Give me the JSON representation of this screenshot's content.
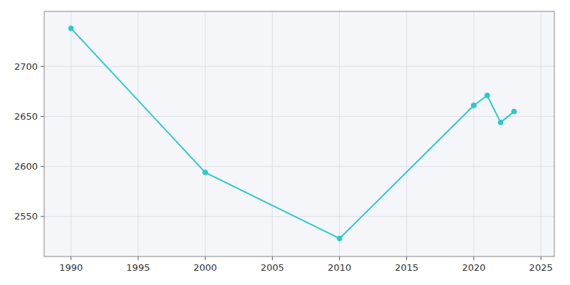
{
  "chart_data": {
    "type": "line",
    "x": [
      1990,
      2000,
      2010,
      2020,
      2021,
      2022,
      2023
    ],
    "values": [
      2738,
      2594,
      2528,
      2661,
      2671,
      2644,
      2655
    ],
    "color": "#2ec8c8",
    "marker": "circle",
    "xlim": [
      1988,
      2026
    ],
    "ylim": [
      2510,
      2755
    ],
    "xticks": [
      1990,
      1995,
      2000,
      2005,
      2010,
      2015,
      2020,
      2025
    ],
    "yticks": [
      2550,
      2600,
      2650,
      2700
    ],
    "grid": true
  }
}
